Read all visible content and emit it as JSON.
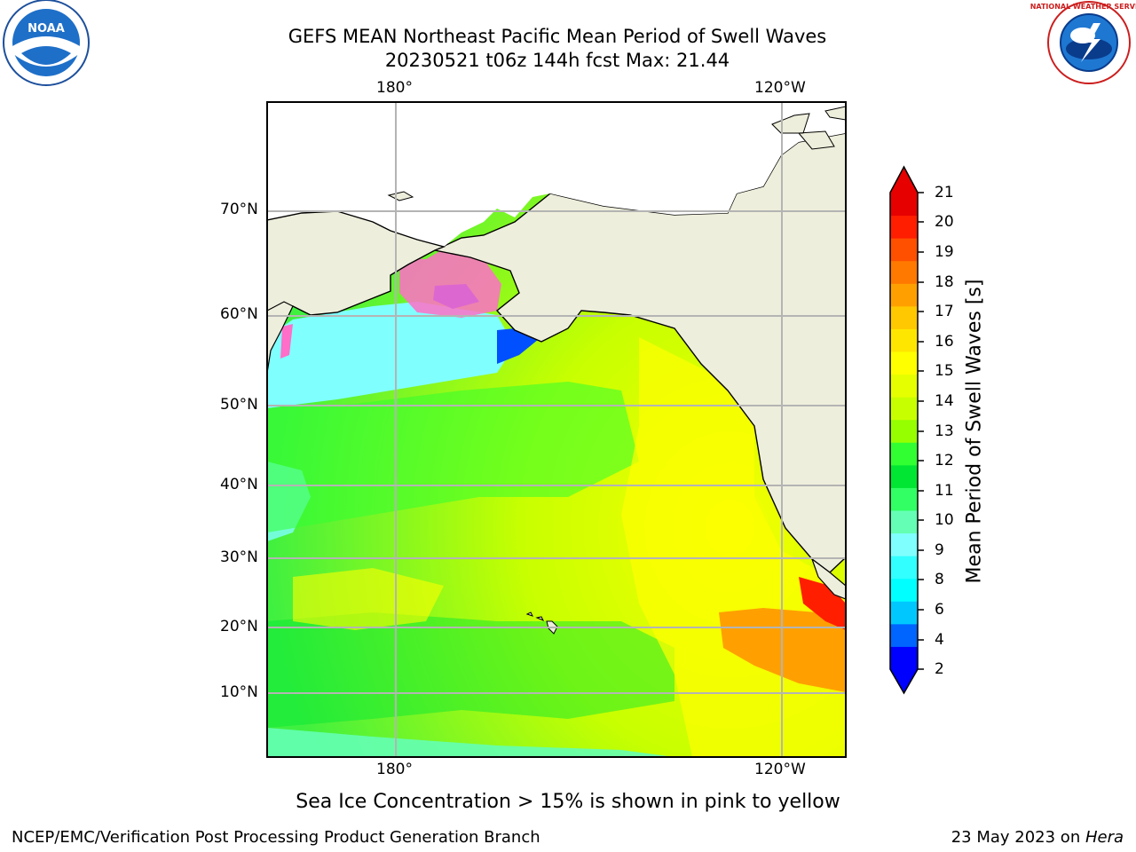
{
  "title_line1": "GEFS MEAN Northeast Pacific Mean Period of Swell Waves",
  "title_line2": "20230521 t06z 144h fcst   Max: 21.44",
  "logos": {
    "left_name": "NOAA",
    "right_name": "NATIONAL WEATHER SERVICE"
  },
  "map": {
    "lon_labels_top": [
      "180°",
      "120°W"
    ],
    "lon_labels_bottom": [
      "180°",
      "120°W"
    ],
    "lat_labels": [
      "70°N",
      "60°N",
      "50°N",
      "40°N",
      "30°N",
      "20°N",
      "10°N"
    ],
    "colors": {
      "land": "#eeeedc",
      "grid": "#b4b4b4",
      "coast": "#000000"
    }
  },
  "colorbar": {
    "label": "Mean Period of Swell Waves [s]",
    "ticks": [
      "21",
      "20",
      "19",
      "18",
      "17",
      "16",
      "15",
      "14",
      "13",
      "12",
      "11",
      "10",
      "9",
      "8",
      "6",
      "4",
      "2"
    ],
    "colors": [
      "#0000ff",
      "#0064ff",
      "#00c8ff",
      "#00ffff",
      "#32ffff",
      "#80ffff",
      "#64ffb4",
      "#32ff64",
      "#00e632",
      "#32ff32",
      "#96ff00",
      "#c8ff00",
      "#e6ff00",
      "#ffff00",
      "#ffe600",
      "#ffc800",
      "#ffa000",
      "#ff7800",
      "#ff5000",
      "#ff1e00",
      "#e60000"
    ]
  },
  "caption": "Sea Ice Concentration > 15% is shown in pink to yellow",
  "footer_left": "NCEP/EMC/Verification Post Processing Product Generation Branch",
  "footer_right_date": "23 May 2023 on ",
  "footer_right_machine": "Hera"
}
